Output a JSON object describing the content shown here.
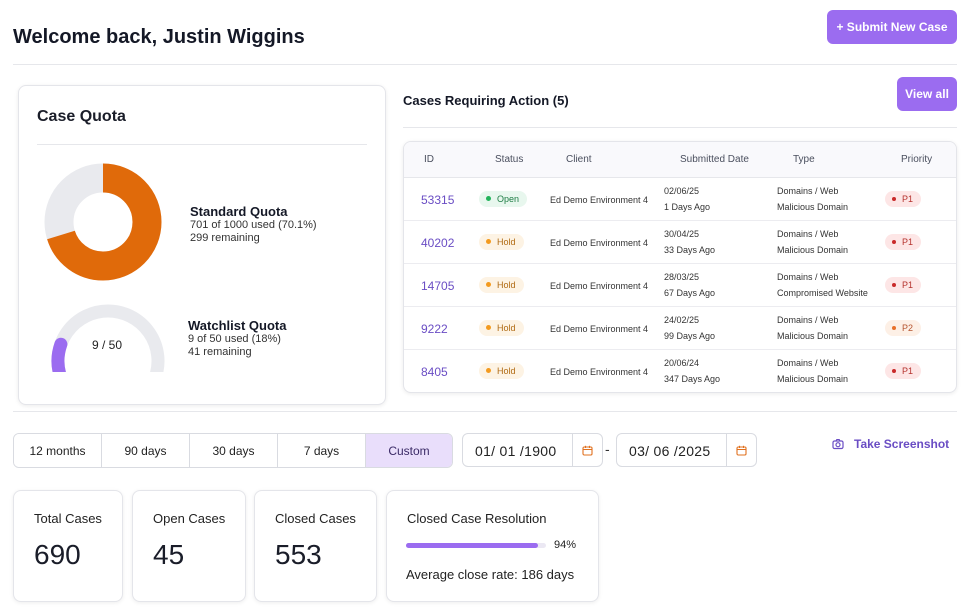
{
  "header": {
    "welcome": "Welcome back, Justin Wiggins",
    "submit_label": "+ Submit New Case"
  },
  "quota": {
    "title": "Case Quota",
    "standard": {
      "name": "Standard Quota",
      "used_text": "701 of 1000 used (70.1%)",
      "remaining_text": "299 remaining",
      "fraction": 0.701,
      "color": "#e06a0a",
      "track_color": "#e9eaee"
    },
    "watchlist": {
      "name": "Watchlist Quota",
      "used_text": "9 of 50 used (18%)",
      "remaining_text": "41 remaining",
      "gauge_label": "9 / 50",
      "fraction": 0.18,
      "color": "#9b6cf0",
      "track_color": "#e9eaee"
    }
  },
  "actions": {
    "title": "Cases Requiring Action (5)",
    "view_all_label": "View all",
    "columns": [
      "ID",
      "Status",
      "Client",
      "Submitted Date",
      "Type",
      "Priority"
    ],
    "rows": [
      {
        "id": "53315",
        "status": "Open",
        "status_kind": "open",
        "client": "Ed Demo Environment 4",
        "date": "02/06/25",
        "ago": "1 Days Ago",
        "type1": "Domains / Web",
        "type2": "Malicious Domain",
        "priority": "P1",
        "prio_kind": "p1"
      },
      {
        "id": "40202",
        "status": "Hold",
        "status_kind": "hold",
        "client": "Ed Demo Environment 4",
        "date": "30/04/25",
        "ago": "33 Days Ago",
        "type1": "Domains / Web",
        "type2": "Malicious Domain",
        "priority": "P1",
        "prio_kind": "p1"
      },
      {
        "id": "14705",
        "status": "Hold",
        "status_kind": "hold",
        "client": "Ed Demo Environment 4",
        "date": "28/03/25",
        "ago": "67 Days Ago",
        "type1": "Domains / Web",
        "type2": "Compromised Website",
        "priority": "P1",
        "prio_kind": "p1"
      },
      {
        "id": "9222",
        "status": "Hold",
        "status_kind": "hold",
        "client": "Ed Demo Environment 4",
        "date": "24/02/25",
        "ago": "99 Days Ago",
        "type1": "Domains / Web",
        "type2": "Malicious Domain",
        "priority": "P2",
        "prio_kind": "p2"
      },
      {
        "id": "8405",
        "status": "Hold",
        "status_kind": "hold",
        "client": "Ed Demo Environment 4",
        "date": "20/06/24",
        "ago": "347 Days Ago",
        "type1": "Domains / Web",
        "type2": "Malicious Domain",
        "priority": "P1",
        "prio_kind": "p1"
      }
    ]
  },
  "filters": {
    "ranges": [
      {
        "label": "12 months",
        "active": false
      },
      {
        "label": "90 days",
        "active": false
      },
      {
        "label": "30 days",
        "active": false
      },
      {
        "label": "7 days",
        "active": false
      },
      {
        "label": "Custom",
        "active": true
      }
    ],
    "date_from": "01/ 01 /1900",
    "date_to": "03/ 06 /2025",
    "separator": "-",
    "screenshot_label": "Take Screenshot"
  },
  "stats": {
    "total_label": "Total Cases",
    "total_value": "690",
    "open_label": "Open Cases",
    "open_value": "45",
    "closed_label": "Closed Cases",
    "closed_value": "553",
    "resolution_label": "Closed Case Resolution",
    "resolution_pct_text": "94%",
    "resolution_fraction": 0.94,
    "avg_close_text": "Average close rate: 186 days"
  }
}
